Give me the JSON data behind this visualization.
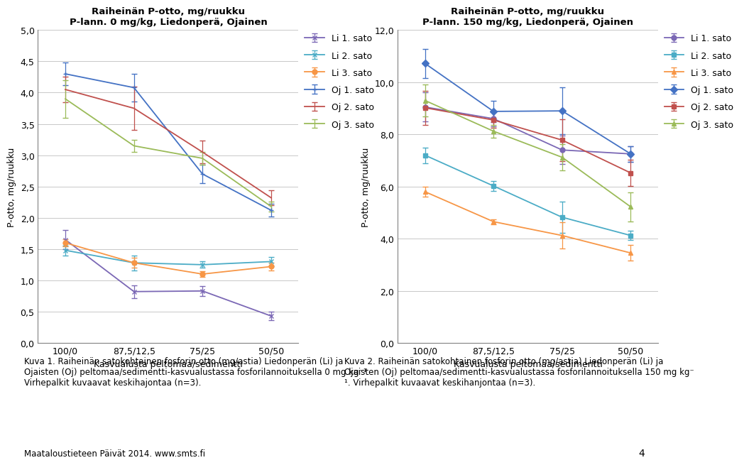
{
  "chart1": {
    "title": "Raiheinän P-otto, mg/ruukku\nP-lann. 0 mg/kg, Liedonperä, Ojainen",
    "ylabel": "P-otto, mg/ruukku",
    "xlabel": "Kasvualusta peltomaa/sedimentti",
    "x_labels": [
      "100/0",
      "87,5/12,5",
      "75/25",
      "50/50"
    ],
    "ylim": [
      0.0,
      5.0
    ],
    "yticks": [
      0.0,
      0.5,
      1.0,
      1.5,
      2.0,
      2.5,
      3.0,
      3.5,
      4.0,
      4.5,
      5.0
    ],
    "series": [
      {
        "label": "Li 1. sato",
        "color": "#7B68B5",
        "marker": "x",
        "values": [
          1.65,
          0.82,
          0.83,
          0.43
        ],
        "errors": [
          0.15,
          0.1,
          0.08,
          0.07
        ]
      },
      {
        "label": "Li 2. sato",
        "color": "#4BACC6",
        "marker": "x",
        "values": [
          1.48,
          1.28,
          1.25,
          1.3
        ],
        "errors": [
          0.08,
          0.12,
          0.05,
          0.07
        ]
      },
      {
        "label": "Li 3. sato",
        "color": "#F79646",
        "marker": "o",
        "values": [
          1.6,
          1.28,
          1.1,
          1.22
        ],
        "errors": [
          0.06,
          0.08,
          0.05,
          0.06
        ]
      },
      {
        "label": "Oj 1. sato",
        "color": "#4472C4",
        "marker": "+",
        "values": [
          4.3,
          4.08,
          2.7,
          2.12
        ],
        "errors": [
          0.18,
          0.22,
          0.15,
          0.1
        ]
      },
      {
        "label": "Oj 2. sato",
        "color": "#C0504D",
        "marker": "none",
        "values": [
          4.05,
          3.75,
          3.05,
          2.32
        ],
        "errors": [
          0.2,
          0.35,
          0.18,
          0.12
        ]
      },
      {
        "label": "Oj 3. sato",
        "color": "#9BBB59",
        "marker": "none",
        "values": [
          3.9,
          3.15,
          2.95,
          2.18
        ],
        "errors": [
          0.3,
          0.1,
          0.1,
          0.08
        ]
      }
    ]
  },
  "chart2": {
    "title": "Raiheinän P-otto, mg/ruukku\nP-lann. 150 mg/kg, Liedonperä, Ojainen",
    "ylabel": "P-otto, mg/ruukku",
    "xlabel": "Kasvualusta peltomaa/sedimentti",
    "x_labels": [
      "100/0",
      "87,5/12,5",
      "75/25",
      "50/50"
    ],
    "ylim": [
      0.0,
      12.0
    ],
    "yticks": [
      0.0,
      2.0,
      4.0,
      6.0,
      8.0,
      10.0,
      12.0
    ],
    "series": [
      {
        "label": "Li 1. sato",
        "color": "#7B68B5",
        "marker": "o",
        "values": [
          9.05,
          8.6,
          7.4,
          7.25
        ],
        "errors": [
          0.55,
          0.3,
          0.55,
          0.3
        ]
      },
      {
        "label": "Li 2. sato",
        "color": "#4BACC6",
        "marker": "s",
        "values": [
          7.2,
          6.02,
          4.82,
          4.12
        ],
        "errors": [
          0.3,
          0.2,
          0.6,
          0.18
        ]
      },
      {
        "label": "Li 3. sato",
        "color": "#F79646",
        "marker": "^",
        "values": [
          5.8,
          4.65,
          4.12,
          3.45
        ],
        "errors": [
          0.18,
          0.1,
          0.5,
          0.3
        ]
      },
      {
        "label": "Oj 1. sato",
        "color": "#4472C4",
        "marker": "D",
        "values": [
          10.72,
          8.88,
          8.9,
          7.25
        ],
        "errors": [
          0.55,
          0.4,
          0.9,
          0.3
        ]
      },
      {
        "label": "Oj 2. sato",
        "color": "#C0504D",
        "marker": "s",
        "values": [
          9.02,
          8.55,
          7.78,
          6.52
        ],
        "errors": [
          0.65,
          0.3,
          0.8,
          0.5
        ]
      },
      {
        "label": "Oj 3. sato",
        "color": "#9BBB59",
        "marker": "^",
        "values": [
          9.3,
          8.12,
          7.12,
          5.22
        ],
        "errors": [
          0.6,
          0.25,
          0.5,
          0.55
        ]
      }
    ]
  },
  "caption1": "Kuva 1. Raiheinän satokohtainen fosforin otto (mg/astia) Liedonperän (Li) ja\nOjaisten (Oj) peltomaa/sedimentti-kasvualustassa fosforilannoituksella 0 mg kg⁻¹.\nVirhepalkit kuvaavat keskihajontaa (n=3).",
  "caption2": "Kuva 2. Raiheinän satokohtainen fosforin otto (mg/astia) Liedonperän (Li) ja\nOjaisten (Oj) peltomaa/sedimentti-kasvualustassa fosforilannoituksella 150 mg kg⁻\n¹. Virhepalkit kuvaavat keskihanjontaa (n=3).",
  "footer": "Maataloustieteen Päivät 2014. www.smts.fi",
  "page_number": "4",
  "background_color": "#FFFFFF",
  "grid_color": "#C8C8C8",
  "tick_label_size": 9,
  "axis_label_size": 9,
  "title_size": 9.5,
  "legend_size": 9,
  "caption_size": 8.5
}
